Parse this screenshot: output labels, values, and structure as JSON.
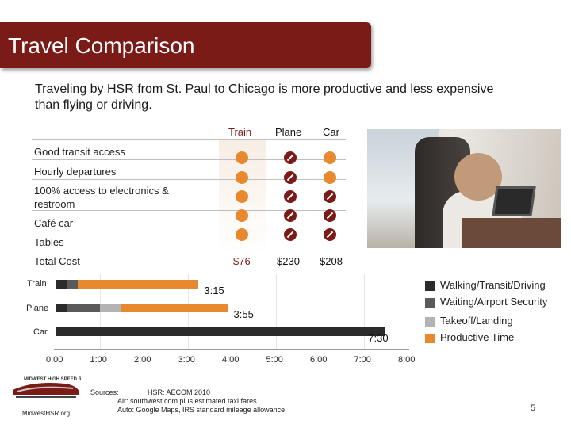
{
  "slide": {
    "title": "Travel Comparison",
    "subtitle": "Traveling by HSR from St. Paul to Chicago is more productive and less expensive than flying or driving.",
    "page_number": "5"
  },
  "table": {
    "columns": [
      "Train",
      "Plane",
      "Car"
    ],
    "rows": [
      {
        "label": "Good transit access",
        "train": true,
        "plane": false,
        "car": true
      },
      {
        "label": "Hourly departures",
        "train": true,
        "plane": false,
        "car": true
      },
      {
        "label": "100% access to electronics & restroom",
        "train": true,
        "plane": false,
        "car": false
      },
      {
        "label": "Café car",
        "train": true,
        "plane": false,
        "car": false
      },
      {
        "label": "Tables",
        "train": true,
        "plane": false,
        "car": false
      }
    ],
    "cost_label": "Total Cost",
    "costs": [
      "$76",
      "$230",
      "$208"
    ],
    "colors": {
      "yes": "#e8892f",
      "no": "#7a1b17"
    }
  },
  "chart_data": {
    "type": "bar",
    "stacked": true,
    "orientation": "horizontal",
    "categories": [
      "Train",
      "Plane",
      "Car"
    ],
    "x_ticks": [
      "0:00",
      "1:00",
      "2:00",
      "3:00",
      "4:00",
      "5:00",
      "6:00",
      "7:00",
      "8:00"
    ],
    "xlim": [
      0,
      8
    ],
    "series": [
      {
        "name": "Walking/Transit/Driving",
        "color": "#2b2b2b",
        "values": [
          0.25,
          0.25,
          7.5
        ]
      },
      {
        "name": "Waiting/Airport Security",
        "color": "#5a5a5a",
        "values": [
          0.25,
          0.75,
          0
        ]
      },
      {
        "name": "Takeoff/Landing",
        "color": "#b3b3b3",
        "values": [
          0,
          0.5,
          0
        ]
      },
      {
        "name": "Productive Time",
        "color": "#e8892f",
        "values": [
          2.75,
          2.42,
          0
        ]
      }
    ],
    "totals": [
      "3:15",
      "3:55",
      "7:30"
    ]
  },
  "footer": {
    "logo_caption": "MidwestHSR.org",
    "sources_label": "Sources:",
    "sources": [
      "HSR: AECOM 2010",
      "Air: southwest.com plus estimated taxi fares",
      "Auto: Google Maps, IRS standard mileage allowance"
    ]
  }
}
